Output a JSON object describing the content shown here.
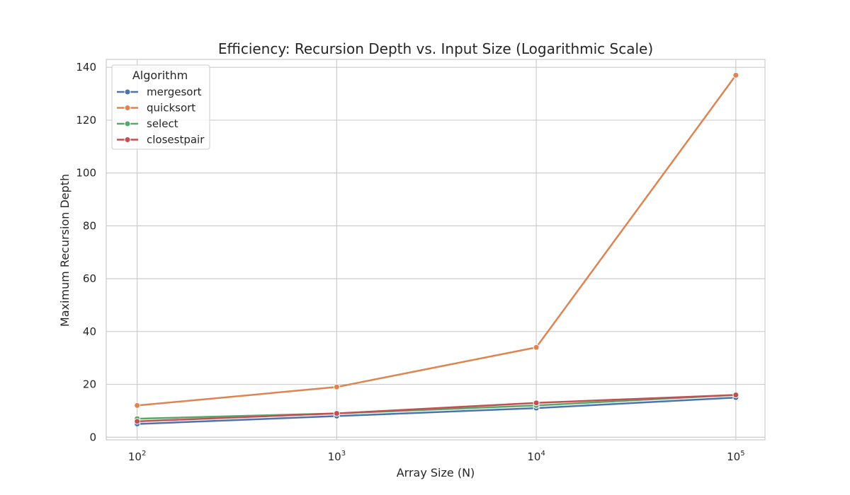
{
  "chart_data": {
    "type": "line",
    "title": "Efficiency: Recursion Depth vs. Input Size (Logarithmic Scale)",
    "xlabel": "Array Size (N)",
    "ylabel": "Maximum Recursion Depth",
    "xscale": "log",
    "xlim": [
      70,
      140000
    ],
    "ylim": [
      -1,
      143
    ],
    "x": [
      100,
      1000,
      10000,
      100000
    ],
    "x_tick_labels": [
      {
        "base": "10",
        "exp": "2"
      },
      {
        "base": "10",
        "exp": "3"
      },
      {
        "base": "10",
        "exp": "4"
      },
      {
        "base": "10",
        "exp": "5"
      }
    ],
    "y_ticks": [
      0,
      20,
      40,
      60,
      80,
      100,
      120,
      140
    ],
    "grid": true,
    "legend": {
      "title": "Algorithm",
      "placement": "top-left"
    },
    "series": [
      {
        "name": "mergesort",
        "color": "#4c72b0",
        "values": [
          5,
          8,
          11,
          15
        ]
      },
      {
        "name": "quicksort",
        "color": "#dd8452",
        "values": [
          12,
          19,
          34,
          137
        ]
      },
      {
        "name": "select",
        "color": "#55a868",
        "values": [
          7,
          9,
          12,
          16
        ]
      },
      {
        "name": "closestpair",
        "color": "#c44e52",
        "values": [
          6,
          9,
          13,
          16
        ]
      }
    ]
  }
}
